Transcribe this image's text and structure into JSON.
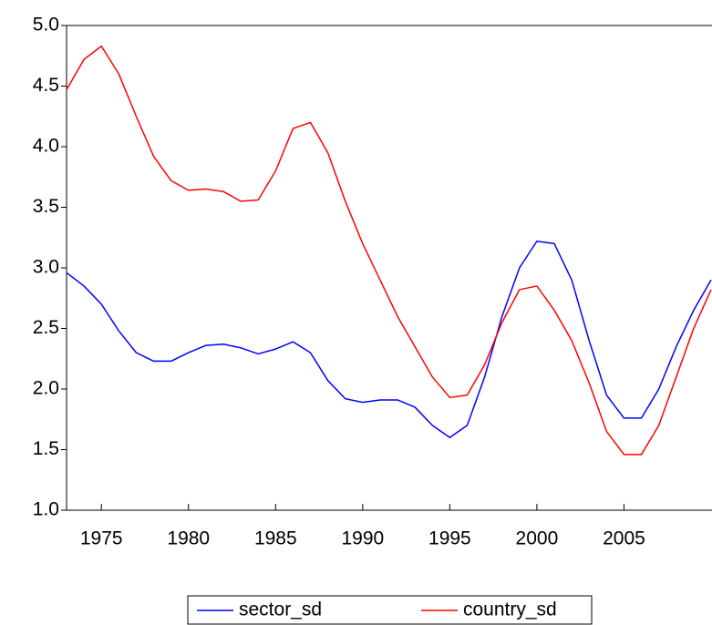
{
  "chart_data": {
    "type": "line",
    "x": [
      1973,
      1974,
      1975,
      1976,
      1977,
      1978,
      1979,
      1980,
      1981,
      1982,
      1983,
      1984,
      1985,
      1986,
      1987,
      1988,
      1989,
      1990,
      1991,
      1992,
      1993,
      1994,
      1995,
      1996,
      1997,
      1998,
      1999,
      2000,
      2001,
      2002,
      2003,
      2004,
      2005,
      2006,
      2007,
      2008,
      2009,
      2010
    ],
    "series": [
      {
        "name": "sector_sd",
        "color": "#0000ff",
        "values": [
          2.96,
          2.85,
          2.7,
          2.48,
          2.3,
          2.23,
          2.23,
          2.3,
          2.36,
          2.37,
          2.34,
          2.29,
          2.33,
          2.39,
          2.3,
          2.07,
          1.92,
          1.89,
          1.91,
          1.91,
          1.85,
          1.7,
          1.6,
          1.7,
          2.1,
          2.6,
          3.0,
          3.22,
          3.2,
          2.9,
          2.4,
          1.95,
          1.76,
          1.76,
          2.0,
          2.35,
          2.65,
          2.9
        ]
      },
      {
        "name": "country_sd",
        "color": "#ff0000",
        "values": [
          4.47,
          4.72,
          4.83,
          4.6,
          4.25,
          3.92,
          3.72,
          3.64,
          3.65,
          3.63,
          3.55,
          3.56,
          3.8,
          4.15,
          4.2,
          3.95,
          3.55,
          3.2,
          2.9,
          2.6,
          2.35,
          2.1,
          1.93,
          1.95,
          2.2,
          2.55,
          2.82,
          2.85,
          2.65,
          2.4,
          2.05,
          1.65,
          1.46,
          1.46,
          1.7,
          2.1,
          2.5,
          2.82
        ]
      }
    ],
    "xlim": [
      1973,
      2010
    ],
    "xticks": [
      1975,
      1980,
      1985,
      1990,
      1995,
      2000,
      2005
    ],
    "ylim": [
      1.0,
      5.0
    ],
    "yticks": [
      {
        "value": 1.0,
        "label": "1.0"
      },
      {
        "value": 1.5,
        "label": "1.5"
      },
      {
        "value": 2.0,
        "label": "2.0"
      },
      {
        "value": 2.5,
        "label": "2.5"
      },
      {
        "value": 3.0,
        "label": "3.0"
      },
      {
        "value": 3.5,
        "label": "3.5"
      },
      {
        "value": 4.0,
        "label": "4.0"
      },
      {
        "value": 4.5,
        "label": "4.5"
      },
      {
        "value": 5.0,
        "label": "5.0"
      }
    ],
    "legend": "bottom"
  }
}
